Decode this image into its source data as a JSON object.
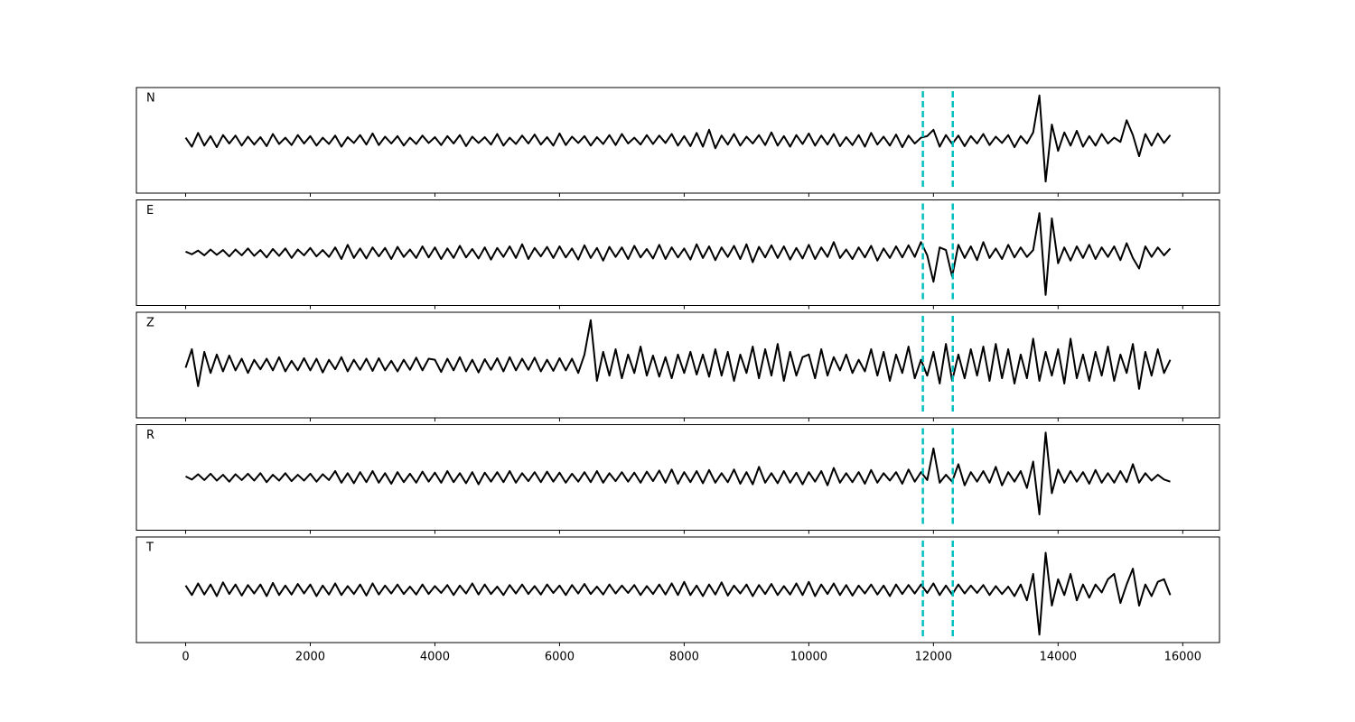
{
  "chart_data": {
    "type": "line",
    "layout": "stacked",
    "x": [
      0,
      100,
      200,
      300,
      400,
      500,
      600,
      700,
      800,
      900,
      1000,
      1100,
      1200,
      1300,
      1400,
      1500,
      1600,
      1700,
      1800,
      1900,
      2000,
      2100,
      2200,
      2300,
      2400,
      2500,
      2600,
      2700,
      2800,
      2900,
      3000,
      3100,
      3200,
      3300,
      3400,
      3500,
      3600,
      3700,
      3800,
      3900,
      4000,
      4100,
      4200,
      4300,
      4400,
      4500,
      4600,
      4700,
      4800,
      4900,
      5000,
      5100,
      5200,
      5300,
      5400,
      5500,
      5600,
      5700,
      5800,
      5900,
      6000,
      6100,
      6200,
      6300,
      6400,
      6500,
      6600,
      6700,
      6800,
      6900,
      7000,
      7100,
      7200,
      7300,
      7400,
      7500,
      7600,
      7700,
      7800,
      7900,
      8000,
      8100,
      8200,
      8300,
      8400,
      8500,
      8600,
      8700,
      8800,
      8900,
      9000,
      9100,
      9200,
      9300,
      9400,
      9500,
      9600,
      9700,
      9800,
      9900,
      10000,
      10100,
      10200,
      10300,
      10400,
      10500,
      10600,
      10700,
      10800,
      10900,
      11000,
      11100,
      11200,
      11300,
      11400,
      11500,
      11600,
      11700,
      11800,
      11900,
      12000,
      12100,
      12200,
      12300,
      12400,
      12500,
      12600,
      12700,
      12800,
      12900,
      13000,
      13100,
      13200,
      13300,
      13400,
      13500,
      13600,
      13700,
      13800,
      13900,
      14000,
      14100,
      14200,
      14300,
      14400,
      14500,
      14600,
      14700,
      14800,
      14900,
      15000,
      15100,
      15200,
      15300,
      15400,
      15500,
      15600,
      15700,
      15800
    ],
    "series": [
      {
        "name": "N",
        "color": "#000000",
        "values": [
          0.05,
          -0.12,
          0.14,
          -0.1,
          0.08,
          -0.13,
          0.1,
          -0.06,
          0.09,
          -0.1,
          0.07,
          -0.08,
          0.06,
          -0.11,
          0.12,
          -0.07,
          0.05,
          -0.09,
          0.1,
          -0.06,
          0.08,
          -0.1,
          0.05,
          -0.07,
          0.09,
          -0.12,
          0.06,
          -0.05,
          0.1,
          -0.08,
          0.13,
          -0.09,
          0.07,
          -0.06,
          0.08,
          -0.1,
          0.05,
          -0.07,
          0.09,
          -0.05,
          0.06,
          -0.09,
          0.08,
          -0.06,
          0.1,
          -0.11,
          0.07,
          -0.05,
          0.06,
          -0.08,
          0.12,
          -0.1,
          0.05,
          -0.07,
          0.09,
          -0.06,
          0.11,
          -0.08,
          0.06,
          -0.1,
          0.13,
          -0.09,
          0.07,
          -0.05,
          0.08,
          -0.1,
          0.06,
          -0.07,
          0.1,
          -0.09,
          0.12,
          -0.06,
          0.05,
          -0.08,
          0.1,
          -0.07,
          0.09,
          -0.05,
          0.12,
          -0.1,
          0.08,
          -0.11,
          0.14,
          -0.12,
          0.2,
          -0.15,
          0.09,
          -0.08,
          0.12,
          -0.1,
          0.07,
          -0.06,
          0.1,
          -0.09,
          0.15,
          -0.1,
          0.08,
          -0.12,
          0.1,
          -0.07,
          0.13,
          -0.1,
          0.09,
          -0.08,
          0.12,
          -0.11,
          0.06,
          -0.09,
          0.1,
          -0.12,
          0.14,
          -0.08,
          0.07,
          -0.1,
          0.11,
          -0.13,
          0.09,
          -0.06,
          0.05,
          0.08,
          0.2,
          -0.12,
          0.1,
          -0.07,
          0.09,
          -0.11,
          0.08,
          -0.06,
          0.12,
          -0.09,
          0.07,
          -0.05,
          0.1,
          -0.13,
          0.08,
          -0.06,
          0.15,
          0.85,
          -0.78,
          0.3,
          -0.2,
          0.15,
          -0.1,
          0.18,
          -0.12,
          0.08,
          -0.1,
          0.12,
          -0.06,
          0.05,
          -0.03,
          0.38,
          0.1,
          -0.3,
          0.12,
          -0.1,
          0.13,
          -0.05,
          0.1
        ]
      },
      {
        "name": "E",
        "color": "#000000",
        "values": [
          0.02,
          -0.03,
          0.04,
          -0.05,
          0.06,
          -0.04,
          0.05,
          -0.07,
          0.06,
          -0.05,
          0.08,
          -0.06,
          0.05,
          -0.09,
          0.07,
          -0.06,
          0.08,
          -0.1,
          0.06,
          -0.05,
          0.09,
          -0.07,
          0.05,
          -0.08,
          0.1,
          -0.12,
          0.15,
          -0.1,
          0.08,
          -0.11,
          0.1,
          -0.07,
          0.09,
          -0.12,
          0.11,
          -0.08,
          0.06,
          -0.1,
          0.12,
          -0.09,
          0.1,
          -0.12,
          0.08,
          -0.1,
          0.13,
          -0.09,
          0.07,
          -0.11,
          0.1,
          -0.13,
          0.09,
          -0.08,
          0.12,
          -0.1,
          0.16,
          -0.12,
          0.09,
          -0.07,
          0.11,
          -0.1,
          0.12,
          -0.09,
          0.08,
          -0.13,
          0.14,
          -0.1,
          0.09,
          -0.15,
          0.11,
          -0.08,
          0.1,
          -0.12,
          0.13,
          -0.09,
          0.07,
          -0.11,
          0.15,
          -0.12,
          0.1,
          -0.09,
          0.08,
          -0.13,
          0.16,
          -0.1,
          0.12,
          -0.14,
          0.1,
          -0.08,
          0.13,
          -0.12,
          0.16,
          -0.18,
          0.11,
          -0.09,
          0.14,
          -0.1,
          0.12,
          -0.13,
          0.09,
          -0.11,
          0.15,
          -0.12,
          0.1,
          -0.08,
          0.2,
          -0.1,
          0.06,
          -0.12,
          0.1,
          -0.09,
          0.13,
          -0.15,
          0.08,
          -0.1,
          0.12,
          -0.09,
          0.14,
          -0.08,
          0.2,
          -0.05,
          -0.55,
          0.1,
          0.05,
          -0.45,
          0.15,
          -0.1,
          0.12,
          -0.14,
          0.2,
          -0.1,
          0.08,
          -0.12,
          0.15,
          -0.09,
          0.1,
          -0.08,
          0.05,
          0.75,
          -0.8,
          0.65,
          -0.2,
          0.1,
          -0.15,
          0.12,
          -0.1,
          0.15,
          -0.12,
          0.1,
          -0.08,
          0.12,
          -0.14,
          0.18,
          -0.1,
          -0.3,
          0.12,
          -0.08,
          0.1,
          -0.05,
          0.08
        ]
      },
      {
        "name": "Z",
        "color": "#000000",
        "values": [
          -0.05,
          0.3,
          -0.4,
          0.25,
          -0.15,
          0.2,
          -0.12,
          0.18,
          -0.1,
          0.12,
          -0.15,
          0.1,
          -0.08,
          0.12,
          -0.1,
          0.15,
          -0.12,
          0.08,
          -0.1,
          0.13,
          -0.1,
          0.12,
          -0.14,
          0.1,
          -0.08,
          0.15,
          -0.12,
          0.1,
          -0.09,
          0.12,
          -0.11,
          0.13,
          -0.1,
          0.08,
          -0.12,
          0.1,
          -0.09,
          0.14,
          -0.1,
          0.12,
          0.1,
          -0.13,
          0.12,
          -0.1,
          0.15,
          -0.12,
          0.1,
          -0.14,
          0.11,
          -0.09,
          0.13,
          -0.12,
          0.15,
          -0.1,
          0.12,
          -0.09,
          0.14,
          -0.12,
          0.1,
          -0.11,
          0.13,
          -0.1,
          0.12,
          -0.15,
          0.2,
          0.85,
          -0.3,
          0.25,
          -0.2,
          0.3,
          -0.25,
          0.2,
          -0.15,
          0.35,
          -0.2,
          0.18,
          -0.22,
          0.15,
          -0.25,
          0.2,
          -0.15,
          0.25,
          -0.18,
          0.2,
          -0.22,
          0.3,
          -0.2,
          0.25,
          -0.3,
          0.2,
          -0.15,
          0.35,
          -0.25,
          0.3,
          -0.2,
          0.4,
          -0.3,
          0.25,
          -0.2,
          0.15,
          0.2,
          -0.25,
          0.3,
          -0.2,
          0.15,
          -0.1,
          0.2,
          -0.15,
          0.1,
          -0.12,
          0.3,
          -0.2,
          0.25,
          -0.3,
          0.2,
          -0.15,
          0.35,
          -0.25,
          0.1,
          -0.2,
          0.25,
          -0.35,
          0.4,
          -0.3,
          0.2,
          -0.25,
          0.3,
          -0.2,
          0.35,
          -0.3,
          0.4,
          -0.25,
          0.3,
          -0.35,
          0.2,
          -0.25,
          0.5,
          -0.3,
          0.25,
          -0.2,
          0.3,
          -0.35,
          0.5,
          -0.25,
          0.2,
          -0.3,
          0.25,
          -0.2,
          0.35,
          -0.3,
          0.2,
          -0.15,
          0.4,
          -0.45,
          0.25,
          -0.2,
          0.3,
          -0.15,
          0.1
        ]
      },
      {
        "name": "R",
        "color": "#000000",
        "values": [
          0.02,
          -0.04,
          0.06,
          -0.05,
          0.07,
          -0.06,
          0.05,
          -0.08,
          0.06,
          -0.05,
          0.07,
          -0.06,
          0.08,
          -0.09,
          0.05,
          -0.06,
          0.08,
          -0.07,
          0.05,
          -0.06,
          0.07,
          -0.08,
          0.06,
          -0.05,
          0.12,
          -0.1,
          0.08,
          -0.11,
          0.1,
          -0.09,
          0.12,
          -0.1,
          0.08,
          -0.12,
          0.1,
          -0.09,
          0.07,
          -0.1,
          0.11,
          -0.08,
          0.09,
          -0.1,
          0.12,
          -0.09,
          0.08,
          -0.11,
          0.1,
          -0.13,
          0.09,
          -0.08,
          0.1,
          -0.09,
          0.12,
          -0.1,
          0.08,
          -0.07,
          0.1,
          -0.09,
          0.11,
          -0.08,
          0.09,
          -0.1,
          0.07,
          -0.08,
          0.1,
          -0.09,
          0.12,
          -0.1,
          0.08,
          -0.07,
          0.1,
          -0.08,
          0.09,
          -0.1,
          0.11,
          -0.07,
          0.13,
          -0.1,
          0.15,
          -0.12,
          0.1,
          -0.09,
          0.12,
          -0.11,
          0.14,
          -0.1,
          0.08,
          -0.09,
          0.15,
          -0.12,
          0.1,
          -0.13,
          0.2,
          -0.1,
          0.08,
          -0.11,
          0.12,
          -0.1,
          0.09,
          -0.13,
          0.1,
          -0.08,
          0.12,
          -0.15,
          0.18,
          -0.1,
          0.08,
          -0.09,
          0.1,
          -0.12,
          0.14,
          -0.1,
          0.08,
          -0.06,
          0.1,
          -0.12,
          0.15,
          -0.08,
          0.1,
          -0.05,
          0.55,
          -0.1,
          0.05,
          -0.08,
          0.25,
          -0.15,
          0.1,
          -0.08,
          0.12,
          -0.1,
          0.2,
          -0.15,
          0.1,
          -0.08,
          0.12,
          -0.2,
          0.3,
          -0.7,
          0.85,
          -0.3,
          0.15,
          -0.1,
          0.12,
          -0.08,
          0.1,
          -0.12,
          0.14,
          -0.1,
          0.08,
          -0.1,
          0.12,
          -0.09,
          0.25,
          -0.1,
          0.08,
          -0.06,
          0.05,
          -0.04,
          -0.08
        ]
      },
      {
        "name": "T",
        "color": "#000000",
        "values": [
          0.08,
          -0.1,
          0.12,
          -0.09,
          0.1,
          -0.12,
          0.14,
          -0.08,
          0.1,
          -0.11,
          0.09,
          -0.07,
          0.1,
          -0.12,
          0.13,
          -0.1,
          0.08,
          -0.09,
          0.11,
          -0.07,
          0.1,
          -0.12,
          0.08,
          -0.09,
          0.12,
          -0.1,
          0.07,
          -0.08,
          0.1,
          -0.11,
          0.12,
          -0.09,
          0.08,
          -0.07,
          0.1,
          -0.08,
          0.06,
          -0.09,
          0.1,
          -0.08,
          0.07,
          -0.06,
          0.09,
          -0.1,
          0.08,
          -0.07,
          0.12,
          -0.09,
          0.1,
          -0.08,
          0.06,
          -0.1,
          0.09,
          -0.07,
          0.1,
          -0.08,
          0.07,
          -0.09,
          0.1,
          -0.06,
          0.08,
          -0.1,
          0.09,
          -0.07,
          0.11,
          -0.08,
          0.06,
          -0.09,
          0.1,
          -0.07,
          0.08,
          -0.06,
          0.09,
          -0.1,
          0.07,
          -0.08,
          0.1,
          -0.09,
          0.12,
          -0.1,
          0.15,
          -0.1,
          0.08,
          -0.12,
          0.1,
          -0.09,
          0.14,
          -0.11,
          0.08,
          -0.07,
          0.1,
          -0.12,
          0.09,
          -0.08,
          0.11,
          -0.1,
          0.07,
          -0.09,
          0.12,
          -0.1,
          0.15,
          -0.12,
          0.1,
          -0.08,
          0.12,
          -0.1,
          0.09,
          -0.11,
          0.08,
          -0.07,
          0.1,
          -0.09,
          0.08,
          -0.12,
          0.1,
          -0.08,
          0.09,
          -0.07,
          0.1,
          -0.06,
          0.12,
          -0.1,
          0.08,
          -0.09,
          0.1,
          -0.07,
          0.08,
          -0.06,
          0.09,
          -0.1,
          0.07,
          -0.08,
          0.06,
          -0.12,
          0.1,
          -0.2,
          0.3,
          -0.85,
          0.7,
          -0.3,
          0.2,
          -0.1,
          0.3,
          -0.2,
          0.1,
          -0.15,
          0.1,
          -0.05,
          0.2,
          0.3,
          -0.25,
          0.1,
          0.4,
          -0.3,
          0.1,
          -0.12,
          0.15,
          0.2,
          -0.1
        ]
      }
    ],
    "xlim": [
      -790,
      16590
    ],
    "xticks": [
      0,
      2000,
      4000,
      6000,
      8000,
      10000,
      12000,
      14000,
      16000
    ],
    "ylim": [
      -1,
      1
    ],
    "vlines": [
      11830,
      12310
    ],
    "vline_color": "#00bfbf",
    "vline_style": "dashed"
  }
}
